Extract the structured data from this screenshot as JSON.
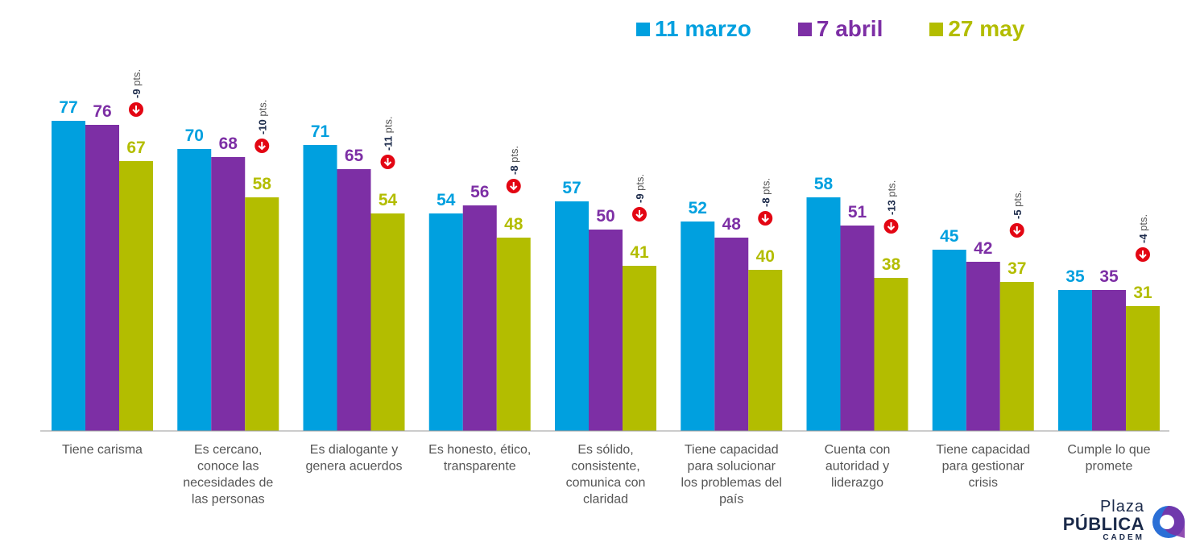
{
  "chart_data": {
    "type": "bar",
    "title": "",
    "xlabel": "",
    "ylabel": "",
    "ylim": [
      0,
      88
    ],
    "grid": false,
    "legend_placement": "top-right",
    "categories": [
      "Tiene carisma",
      "Es cercano, conoce las necesidades de las personas",
      "Es dialogante y genera acuerdos",
      "Es honesto, ético, transparente",
      "Es sólido, consistente, comunica con claridad",
      "Tiene capacidad para solucionar los problemas del país",
      "Cuenta con autoridad y liderazgo",
      "Tiene capacidad para gestionar crisis",
      "Cumple lo que promete"
    ],
    "category_lines": [
      [
        "Tiene carisma"
      ],
      [
        "Es cercano,",
        "conoce las",
        "necesidades de",
        "las personas"
      ],
      [
        "Es dialogante y",
        "genera acuerdos"
      ],
      [
        "Es honesto, ético,",
        "transparente"
      ],
      [
        "Es sólido,",
        "consistente,",
        "comunica con",
        "claridad"
      ],
      [
        "Tiene capacidad",
        "para solucionar",
        "los problemas del",
        "país"
      ],
      [
        "Cuenta con",
        "autoridad y",
        "liderazgo"
      ],
      [
        "Tiene capacidad",
        "para gestionar",
        "crisis"
      ],
      [
        "Cumple lo que",
        "promete"
      ]
    ],
    "series": [
      {
        "name": "11 marzo",
        "color": "#00a0df",
        "values": [
          77,
          70,
          71,
          54,
          57,
          52,
          58,
          45,
          35
        ]
      },
      {
        "name": "7 abril",
        "color": "#7d2fa5",
        "values": [
          76,
          68,
          65,
          56,
          50,
          48,
          51,
          42,
          35
        ]
      },
      {
        "name": "27 may",
        "color": "#b3bd00",
        "values": [
          67,
          58,
          54,
          48,
          41,
          40,
          38,
          37,
          31
        ]
      }
    ],
    "annotations": [
      {
        "delta": "-9",
        "unit": "pts."
      },
      {
        "delta": "-10",
        "unit": "pts."
      },
      {
        "delta": "-11",
        "unit": "pts."
      },
      {
        "delta": "-8",
        "unit": "pts."
      },
      {
        "delta": "-9",
        "unit": "pts."
      },
      {
        "delta": "-8",
        "unit": "pts."
      },
      {
        "delta": "-13",
        "unit": "pts."
      },
      {
        "delta": "-5",
        "unit": "pts."
      },
      {
        "delta": "-4",
        "unit": "pts."
      }
    ],
    "annotation_colors": {
      "arrow_badge": "#e30613",
      "delta_text": "#1b2a4a",
      "unit_text": "#555555"
    }
  },
  "logo": {
    "line1": "Plaza",
    "line2": "PÚBLICA",
    "line3": "CADEM",
    "colors": [
      "#1b2a4a",
      "#2b6fd6",
      "#7d2fa5"
    ]
  },
  "colors": {
    "axis": "#9a9a9a",
    "category_text": "#555555"
  }
}
